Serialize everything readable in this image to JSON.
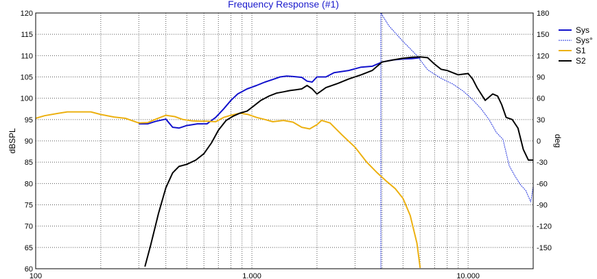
{
  "colors": {
    "sys": "#1111cc",
    "sys_phase": "#2233dd",
    "s1": "#ecb010",
    "s2": "#000000",
    "title": "#1a1acc",
    "grid": "#555555"
  },
  "chart_data": {
    "type": "line",
    "title": "Frequency Response (#1)",
    "ylabel": "dBSPL",
    "y2label": "deg",
    "xscale": "log",
    "xlim": [
      100,
      20000
    ],
    "ylim": [
      60,
      120
    ],
    "y2lim": [
      -180,
      180
    ],
    "grid": true,
    "legend_position": "right",
    "x_ticks": [
      {
        "value": 100,
        "label": "100"
      },
      {
        "value": 1000,
        "label": "1.000"
      },
      {
        "value": 10000,
        "label": "10.000"
      }
    ],
    "y_ticks": [
      60,
      65,
      70,
      75,
      80,
      85,
      90,
      95,
      100,
      105,
      110,
      115,
      120
    ],
    "y2_ticks": [
      180,
      150,
      120,
      90,
      60,
      30,
      0,
      -30,
      -60,
      -90,
      -120,
      -150
    ],
    "series": [
      {
        "name": "Sys",
        "axis": "left",
        "color": "#1111cc",
        "width": 2,
        "dash": "none",
        "x": [
          300,
          330,
          360,
          400,
          430,
          460,
          500,
          560,
          620,
          680,
          740,
          800,
          860,
          950,
          1050,
          1150,
          1250,
          1350,
          1450,
          1550,
          1700,
          1800,
          1900,
          2000,
          2200,
          2400,
          2800,
          3200,
          3600,
          4000,
          4500,
          5000,
          5500,
          6000
        ],
        "y": [
          94,
          94,
          94.6,
          95.1,
          93.2,
          93.0,
          93.6,
          94.0,
          94.0,
          95.5,
          97.5,
          99.5,
          101.0,
          102.2,
          103.0,
          103.8,
          104.4,
          105.0,
          105.2,
          105.1,
          104.9,
          104.0,
          103.8,
          105.0,
          105.0,
          106.0,
          106.5,
          107.3,
          107.5,
          108.5,
          109.0,
          109.2,
          109.3,
          109.5
        ]
      },
      {
        "name": "Sys°",
        "axis": "right",
        "color": "#2233dd",
        "width": 1,
        "dash": "dotted",
        "x": [
          3950,
          3950,
          4300,
          5000,
          5800,
          6500,
          7500,
          8500,
          9500,
          10500,
          11500,
          12500,
          13500,
          14500,
          15500,
          16500,
          17500,
          18500,
          19500,
          20000
        ],
        "y": [
          -180,
          180,
          162,
          140,
          120,
          100,
          88,
          80,
          70,
          58,
          45,
          30,
          12,
          2,
          -35,
          -50,
          -62,
          -70,
          -86,
          -64
        ]
      },
      {
        "name": "S1",
        "axis": "left",
        "color": "#ecb010",
        "width": 2,
        "dash": "none",
        "x": [
          100,
          110,
          125,
          140,
          160,
          180,
          200,
          230,
          260,
          300,
          330,
          360,
          400,
          440,
          480,
          530,
          580,
          620,
          680,
          740,
          800,
          880,
          960,
          1050,
          1150,
          1250,
          1400,
          1550,
          1700,
          1850,
          2000,
          2100,
          2300,
          2600,
          3000,
          3400,
          3800,
          4200,
          4600,
          5000,
          5400,
          5800,
          6000
        ],
        "y": [
          95.3,
          95.9,
          96.4,
          96.8,
          96.8,
          96.8,
          96.2,
          95.6,
          95.3,
          94.2,
          94.3,
          95.1,
          96.0,
          95.7,
          95.0,
          94.7,
          94.6,
          94.6,
          94.5,
          95.5,
          96.0,
          96.5,
          96.2,
          95.5,
          95.0,
          94.5,
          94.8,
          94.4,
          93.2,
          92.8,
          93.8,
          94.8,
          94.2,
          91.5,
          88.5,
          85.0,
          82.5,
          80.5,
          78.8,
          76.5,
          72.5,
          66.0,
          60.2
        ]
      },
      {
        "name": "S2",
        "axis": "left",
        "color": "#000000",
        "width": 2,
        "dash": "none",
        "x": [
          320,
          340,
          370,
          400,
          430,
          460,
          500,
          550,
          600,
          650,
          700,
          760,
          820,
          880,
          950,
          1020,
          1100,
          1200,
          1300,
          1400,
          1500,
          1600,
          1700,
          1800,
          1900,
          2000,
          2200,
          2500,
          2800,
          3200,
          3600,
          4000,
          4500,
          5000,
          5500,
          6000,
          6500,
          7000,
          7500,
          8000,
          9000,
          10000,
          10500,
          11000,
          12000,
          13000,
          13700,
          14300,
          15000,
          16000,
          17000,
          18000,
          19000,
          20000
        ],
        "y": [
          60.5,
          65.5,
          73.0,
          79.0,
          82.5,
          84.0,
          84.5,
          85.5,
          87.0,
          89.5,
          92.5,
          94.8,
          95.8,
          96.5,
          97.0,
          98.2,
          99.5,
          100.5,
          101.2,
          101.5,
          101.8,
          102.0,
          102.2,
          103.0,
          102.2,
          101.0,
          102.5,
          103.5,
          104.5,
          105.5,
          106.5,
          108.5,
          109.0,
          109.4,
          109.6,
          109.7,
          109.5,
          108.0,
          106.8,
          106.5,
          105.5,
          105.8,
          104.5,
          102.5,
          99.5,
          101.0,
          100.5,
          98.5,
          95.5,
          95.0,
          93.0,
          88.0,
          85.5,
          85.5
        ]
      }
    ]
  }
}
